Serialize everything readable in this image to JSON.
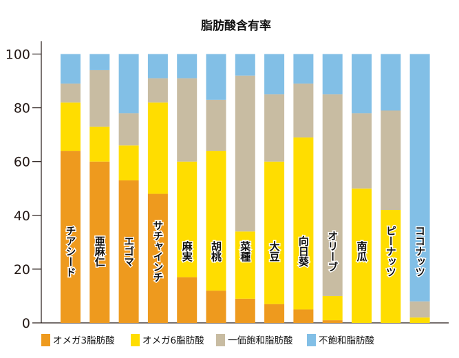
{
  "chart_data": {
    "type": "bar",
    "stacked": true,
    "title": "脂肪酸含有率",
    "xlabel": "",
    "ylabel": "",
    "ylim": [
      0,
      100
    ],
    "yticks": [
      0,
      20,
      40,
      60,
      80,
      100
    ],
    "grid": false,
    "legend_position": "bottom",
    "categories": [
      "チアシード",
      "亜麻仁",
      "エゴマ",
      "サチャインチ",
      "麻実",
      "胡桃",
      "菜種",
      "大豆",
      "向日葵",
      "オリーブ",
      "南瓜",
      "ピーナッツ",
      "ココナッツ"
    ],
    "series": [
      {
        "name": "オメガ3脂肪酸",
        "color": "#EE9A1E",
        "values": [
          64,
          60,
          53,
          48,
          17,
          12,
          9,
          7,
          5,
          1,
          0,
          0,
          0
        ]
      },
      {
        "name": "オメガ6脂肪酸",
        "color": "#FFDD00",
        "values": [
          18,
          13,
          13,
          34,
          43,
          52,
          25,
          53,
          64,
          9,
          50,
          42,
          2
        ]
      },
      {
        "name": "一価飽和脂肪酸",
        "color": "#C8BCA2",
        "values": [
          7,
          21,
          12,
          9,
          31,
          19,
          58,
          25,
          20,
          75,
          28,
          37,
          6
        ]
      },
      {
        "name": "不飽和脂肪酸",
        "color": "#82BFE6",
        "values": [
          11,
          6,
          22,
          9,
          9,
          17,
          8,
          15,
          11,
          15,
          22,
          21,
          92
        ]
      }
    ]
  }
}
